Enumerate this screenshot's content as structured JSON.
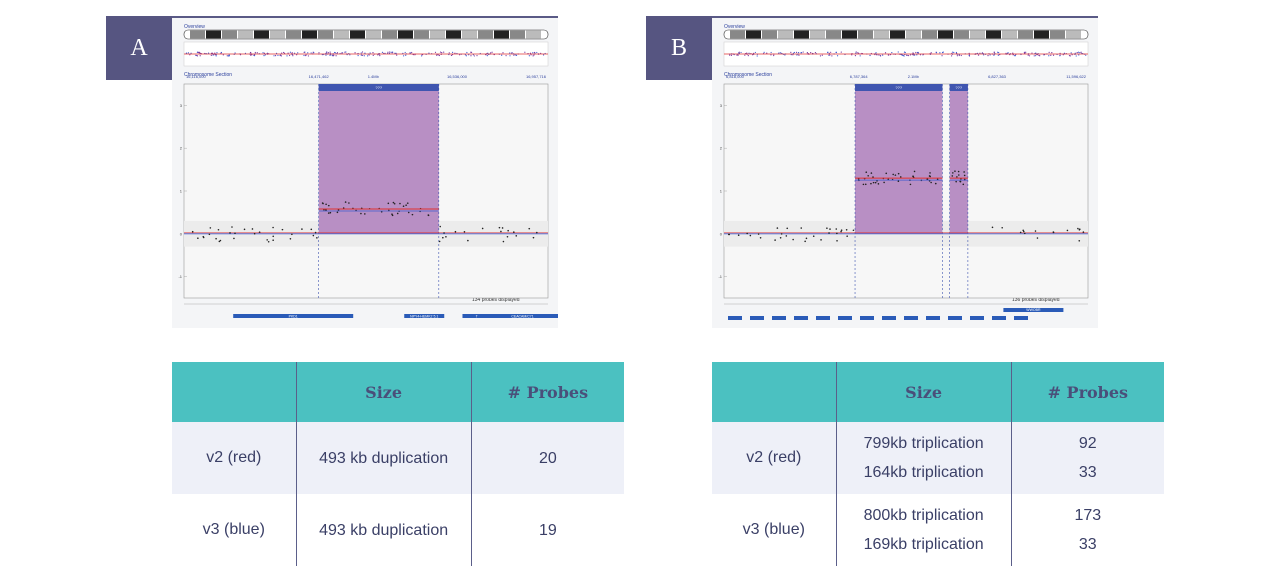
{
  "panels": [
    {
      "letter": "A",
      "overview_label": "Overview",
      "section_label": "Chromosome Section",
      "probes_note": "134 probes displayed",
      "highlight_label": "???",
      "colors": {
        "region": "#b88fc4",
        "red": "#e03030",
        "blue": "#3f5bd0"
      },
      "top_positions": [
        "16,116,000",
        "16,471,462",
        "1.4Mb",
        "16,536,000",
        "16,957,716"
      ],
      "genes": [
        "PKD1",
        "NPY4-HEMK2 5.1",
        "TBX6AS",
        "CEACAM/C71"
      ],
      "chart_data": {
        "type": "scatter",
        "y_ticks": [
          "3",
          "2",
          "1",
          "0",
          "-1"
        ],
        "ylim": [
          -1.5,
          3.5
        ],
        "regions": [
          {
            "start": 0.37,
            "end": 0.7,
            "level_red": 0.58,
            "level_blue": 0.58
          }
        ],
        "baseline": 0
      }
    },
    {
      "letter": "B",
      "overview_label": "Overview",
      "section_label": "Chromosome Section",
      "probes_note": "136 probes displayed",
      "highlight_labels": [
        "???",
        "???"
      ],
      "colors": {
        "region": "#b88fc4",
        "red": "#e03030",
        "blue": "#3f5bd0"
      },
      "top_positions": [
        "6,818,000",
        "6,787,364",
        "2.1Mb",
        "6,827,363",
        "11,596,622"
      ],
      "genes": [
        "WWOBR"
      ],
      "chart_data": {
        "type": "scatter",
        "y_ticks": [
          "3",
          "2",
          "1",
          "0",
          "-1"
        ],
        "ylim": [
          -1.5,
          3.5
        ],
        "regions": [
          {
            "start": 0.36,
            "end": 0.6,
            "level_red": 1.3,
            "level_blue": 1.3
          },
          {
            "start": 0.62,
            "end": 0.67,
            "level_red": 1.3,
            "level_blue": 1.3
          }
        ],
        "baseline": 0
      }
    }
  ],
  "tables": [
    {
      "headers": [
        "",
        "Size",
        "# Probes"
      ],
      "rows": [
        {
          "label": "v2 (red)",
          "sizes": [
            "493 kb duplication"
          ],
          "probes": [
            "20"
          ]
        },
        {
          "label": "v3 (blue)",
          "sizes": [
            "493 kb duplication"
          ],
          "probes": [
            "19"
          ]
        }
      ]
    },
    {
      "headers": [
        "",
        "Size",
        "# Probes"
      ],
      "rows": [
        {
          "label": "v2 (red)",
          "sizes": [
            "799kb triplication",
            "164kb triplication"
          ],
          "probes": [
            "92",
            "33"
          ]
        },
        {
          "label": "v3 (blue)",
          "sizes": [
            "800kb triplication",
            "169kb triplication"
          ],
          "probes": [
            "173",
            "33"
          ]
        }
      ]
    }
  ]
}
